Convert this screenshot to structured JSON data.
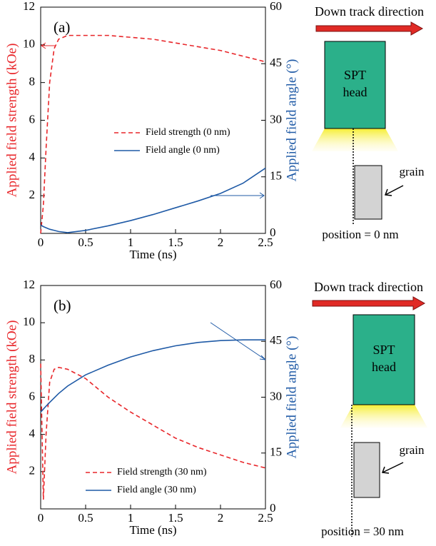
{
  "chart_data": [
    {
      "type": "line",
      "panel": "(a)",
      "xlabel": "Time (ns)",
      "ylabel": "Applied field strength (kOe)",
      "y2label": "Applied field angle (°)",
      "x": [
        0,
        0.03,
        0.06,
        0.1,
        0.15,
        0.2,
        0.3,
        0.5,
        0.75,
        1,
        1.25,
        1.5,
        1.75,
        2,
        2.25,
        2.5
      ],
      "xlim": [
        0,
        2.5
      ],
      "xticks": [
        0,
        0.5,
        1,
        1.5,
        2,
        2.5
      ],
      "ylim": [
        0,
        12
      ],
      "yticks": [
        2,
        4,
        6,
        8,
        10,
        12
      ],
      "y2lim": [
        0,
        60
      ],
      "y2ticks": [
        0,
        15,
        30,
        45,
        60
      ],
      "series": [
        {
          "name": "Field strength (0 nm)",
          "color": "#e8262a",
          "dashed": true,
          "values": [
            0,
            1.5,
            4.5,
            8,
            9.8,
            10.3,
            10.5,
            10.5,
            10.5,
            10.4,
            10.3,
            10.1,
            9.9,
            9.7,
            9.4,
            9.1
          ]
        },
        {
          "name": "Field angle (0 nm)",
          "color": "#1f5aa6",
          "dashed": false,
          "axis": "y2",
          "values": [
            2.2,
            1.8,
            1.5,
            1.1,
            0.8,
            0.5,
            0.2,
            0.8,
            2,
            3.4,
            5,
            6.8,
            8.6,
            10.6,
            13.3,
            17.3
          ]
        }
      ]
    },
    {
      "type": "line",
      "panel": "(b)",
      "xlabel": "Time (ns)",
      "ylabel": "Applied field strength (kOe)",
      "y2label": "Applied field angle (°)",
      "x": [
        0,
        0.03,
        0.06,
        0.1,
        0.15,
        0.2,
        0.3,
        0.5,
        0.75,
        1,
        1.25,
        1.5,
        1.75,
        2,
        2.25,
        2.5
      ],
      "xlim": [
        0,
        2.5
      ],
      "xticks": [
        0,
        0.5,
        1,
        1.5,
        2,
        2.5
      ],
      "ylim": [
        0,
        12
      ],
      "yticks": [
        2,
        4,
        6,
        8,
        10,
        12
      ],
      "y2lim": [
        0,
        60
      ],
      "y2ticks": [
        0,
        15,
        30,
        45,
        60
      ],
      "series": [
        {
          "name": "Field strength (30 nm)",
          "color": "#e8262a",
          "dashed": true,
          "values": [
            7.8,
            0.5,
            4,
            6.8,
            7.5,
            7.6,
            7.5,
            7.0,
            6.0,
            5.2,
            4.5,
            3.8,
            3.3,
            2.9,
            2.5,
            2.2
          ]
        },
        {
          "name": "Field angle (30 nm)",
          "color": "#1f5aa6",
          "dashed": false,
          "axis": "y2",
          "values": [
            26,
            26.8,
            27.6,
            28.6,
            29.8,
            31,
            33,
            36,
            38.6,
            40.8,
            42.5,
            43.8,
            44.7,
            45.2,
            45.4,
            45.4
          ]
        }
      ]
    }
  ],
  "diagrams": [
    {
      "direction": "Down track direction",
      "head": [
        "SPT",
        "head"
      ],
      "grain": "grain",
      "position": "position = 0 nm"
    },
    {
      "direction": "Down track direction",
      "head": [
        "SPT",
        "head"
      ],
      "grain": "grain",
      "position": "position = 30 nm"
    }
  ]
}
